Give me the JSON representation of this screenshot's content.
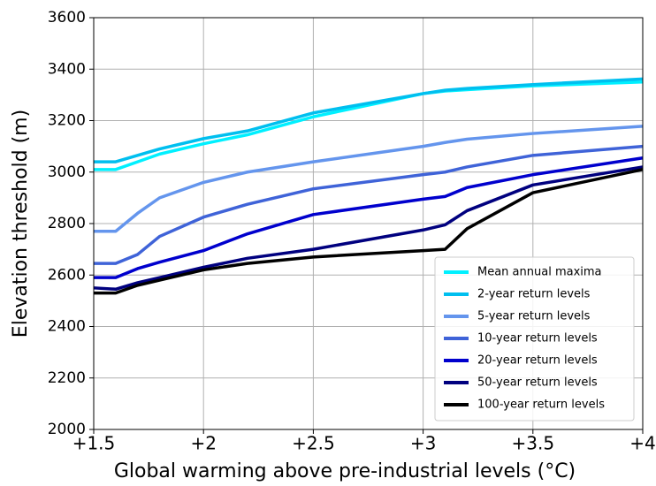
{
  "chart_data": {
    "type": "line",
    "xlabel": "Global warming above pre-industrial levels (°C)",
    "ylabel": "Elevation threshold (m)",
    "x": [
      1.5,
      1.6,
      1.7,
      1.8,
      2.0,
      2.2,
      2.5,
      3.0,
      3.1,
      3.2,
      3.5,
      4.0
    ],
    "series": [
      {
        "name": "Mean annual maxima",
        "color": "#00f0ff",
        "values": [
          3010,
          3010,
          3040,
          3070,
          3110,
          3145,
          3215,
          3305,
          3315,
          3320,
          3335,
          3350
        ]
      },
      {
        "name": "2-year return levels",
        "color": "#00bfef",
        "values": [
          3040,
          3040,
          3065,
          3090,
          3130,
          3160,
          3230,
          3305,
          3318,
          3325,
          3340,
          3362
        ]
      },
      {
        "name": "5-year return levels",
        "color": "#6495ed",
        "values": [
          2770,
          2770,
          2840,
          2900,
          2960,
          3000,
          3040,
          3100,
          3115,
          3128,
          3150,
          3178
        ]
      },
      {
        "name": "10-year return levels",
        "color": "#3f63d8",
        "values": [
          2645,
          2645,
          2680,
          2750,
          2825,
          2875,
          2935,
          2990,
          3000,
          3020,
          3065,
          3100
        ]
      },
      {
        "name": "20-year return levels",
        "color": "#0000cd",
        "values": [
          2590,
          2590,
          2625,
          2650,
          2695,
          2760,
          2835,
          2895,
          2905,
          2940,
          2990,
          3055
        ]
      },
      {
        "name": "50-year return levels",
        "color": "#00007f",
        "values": [
          2550,
          2545,
          2570,
          2590,
          2630,
          2665,
          2700,
          2775,
          2795,
          2850,
          2950,
          3020
        ]
      },
      {
        "name": "100-year return levels",
        "color": "#000000",
        "values": [
          2530,
          2530,
          2560,
          2580,
          2620,
          2645,
          2670,
          2695,
          2700,
          2780,
          2920,
          3010
        ]
      }
    ],
    "xlim": [
      1.5,
      4
    ],
    "xticks": [
      {
        "value": 1.5,
        "label": "+1.5"
      },
      {
        "value": 2,
        "label": "+2"
      },
      {
        "value": 2.5,
        "label": "+2.5"
      },
      {
        "value": 3,
        "label": "+3"
      },
      {
        "value": 3.5,
        "label": "+3.5"
      },
      {
        "value": 4,
        "label": "+4"
      }
    ],
    "ylim": [
      2000,
      3600
    ],
    "yticks": [
      2000,
      2200,
      2400,
      2600,
      2800,
      3000,
      3200,
      3400,
      3600
    ],
    "grid": true,
    "legend": "lower right"
  }
}
